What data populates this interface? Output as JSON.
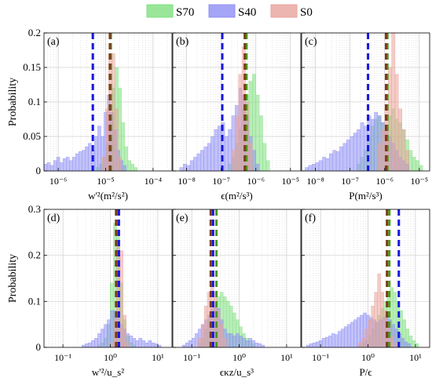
{
  "legend": {
    "position": "top-center",
    "entries": [
      {
        "name": "S70",
        "color": "#7fe07f"
      },
      {
        "name": "S40",
        "color": "#8f8ff5"
      },
      {
        "name": "S0",
        "color": "#e9a39b"
      }
    ]
  },
  "colors": {
    "S70": "#7fe07f",
    "S40": "#8f8ff5",
    "S0": "#e9a39b",
    "S70_line": "#4c9a18",
    "S40_line": "#1515e0",
    "S0_line": "#7a3d1c"
  },
  "chart_data": [
    {
      "type": "bar",
      "panel": "(a)",
      "xscale": "log",
      "xlim_exp": [
        -6.3,
        -3.6
      ],
      "xticks": [
        -6,
        -5,
        -4
      ],
      "ylim": [
        0,
        0.2
      ],
      "yticks": [
        0,
        0.05,
        0.1,
        0.15,
        0.2
      ],
      "yticklabels": [
        "0",
        "0.05",
        "0.1",
        "0.15",
        "0.2"
      ],
      "ylabel": "Probability",
      "xlabel": "w'²(m²/s²)",
      "bin_width": 0.0667,
      "means": {
        "S70": -4.89,
        "S40": -5.27,
        "S0": -4.91
      },
      "series": [
        {
          "name": "S70",
          "start": -5.2,
          "values": [
            0.005,
            0.01,
            0.02,
            0.04,
            0.07,
            0.12,
            0.15,
            0.12,
            0.07,
            0.035,
            0.015,
            0.01,
            0.005
          ]
        },
        {
          "name": "S40",
          "start": -6.3,
          "values": [
            0.01,
            0.012,
            0.008,
            0.015,
            0.02,
            0.012,
            0.018,
            0.02,
            0.015,
            0.02,
            0.025,
            0.028,
            0.03,
            0.035,
            0.04,
            0.03,
            0.05,
            0.065,
            0.05,
            0.085,
            0.11,
            0.085,
            0.06,
            0.03,
            0.015,
            0.008
          ]
        },
        {
          "name": "S0",
          "start": -5.07,
          "values": [
            0.02,
            0.09,
            0.17,
            0.17,
            0.09,
            0.02
          ]
        }
      ]
    },
    {
      "type": "bar",
      "panel": "(b)",
      "xscale": "log",
      "xlim_exp": [
        -8.4,
        -4.7
      ],
      "xticks": [
        -8,
        -7,
        -6,
        -5
      ],
      "ylim": [
        0,
        0.2
      ],
      "yticks": [
        0,
        0.05,
        0.1,
        0.15,
        0.2
      ],
      "yticklabels": [],
      "ylabel": "",
      "xlabel": "ϵ(m²/s³)",
      "bin_width": 0.1,
      "means": {
        "S70": -6.27,
        "S40": -6.97,
        "S0": -6.32
      },
      "series": [
        {
          "name": "S70",
          "start": -6.8,
          "values": [
            0.01,
            0.02,
            0.04,
            0.06,
            0.09,
            0.11,
            0.13,
            0.14,
            0.11,
            0.08,
            0.04,
            0.015
          ]
        },
        {
          "name": "S40",
          "start": -8.2,
          "values": [
            0.005,
            0.01,
            0.008,
            0.015,
            0.02,
            0.025,
            0.03,
            0.035,
            0.04,
            0.05,
            0.06,
            0.065,
            0.07,
            0.05,
            0.06,
            0.08,
            0.095,
            0.12,
            0.11,
            0.08,
            0.05,
            0.03,
            0.01
          ]
        },
        {
          "name": "S0",
          "start": -6.7,
          "values": [
            0.03,
            0.08,
            0.14,
            0.18,
            0.1,
            0.04
          ]
        }
      ]
    },
    {
      "type": "bar",
      "panel": "(c)",
      "xscale": "log",
      "xlim_exp": [
        -8.4,
        -4.7
      ],
      "xticks": [
        -8,
        -7,
        -6,
        -5
      ],
      "ylim": [
        0,
        0.2
      ],
      "yticks": [
        0,
        0.05,
        0.1,
        0.15,
        0.2
      ],
      "yticklabels": [],
      "ylabel": "",
      "xlabel": "P(m²/s³)",
      "bin_width": 0.1,
      "means": {
        "S70": -5.92,
        "S40": -6.48,
        "S0": -5.96
      },
      "series": [
        {
          "name": "S70",
          "start": -6.8,
          "values": [
            0.01,
            0.02,
            0.03,
            0.05,
            0.065,
            0.075,
            0.08,
            0.07,
            0.065,
            0.08,
            0.09,
            0.075,
            0.07,
            0.06,
            0.045,
            0.03,
            0.02,
            0.015,
            0.008
          ]
        },
        {
          "name": "S40",
          "start": -8.3,
          "values": [
            0.005,
            0.008,
            0.01,
            0.012,
            0.015,
            0.02,
            0.018,
            0.025,
            0.03,
            0.028,
            0.035,
            0.04,
            0.045,
            0.05,
            0.055,
            0.06,
            0.07,
            0.065,
            0.08,
            0.075,
            0.085,
            0.08,
            0.07,
            0.06,
            0.05,
            0.04,
            0.03,
            0.02,
            0.015,
            0.01
          ]
        },
        {
          "name": "S0",
          "start": -6.2,
          "values": [
            0.04,
            0.06,
            0.09,
            0.15,
            0.2,
            0.14,
            0.09,
            0.06,
            0.03
          ]
        }
      ]
    },
    {
      "type": "bar",
      "panel": "(d)",
      "xscale": "log",
      "xlim_exp": [
        -1.4,
        1.3
      ],
      "xticks": [
        -1,
        0,
        1
      ],
      "ylim": [
        0,
        0.3
      ],
      "yticks": [
        0,
        0.1,
        0.2,
        0.3
      ],
      "yticklabels": [
        "0",
        "0.1",
        "0.2",
        "0.3"
      ],
      "ylabel": "Probability",
      "xlabel": "w'²/u_s²",
      "bin_width": 0.0667,
      "means": {
        "S70": 0.14,
        "S40": 0.18,
        "S0": 0.12
      },
      "series": [
        {
          "name": "S70",
          "start": -0.27,
          "values": [
            0.005,
            0.01,
            0.02,
            0.05,
            0.14,
            0.27,
            0.25,
            0.14,
            0.06,
            0.025,
            0.01,
            0.005
          ]
        },
        {
          "name": "S40",
          "start": -0.6,
          "values": [
            0.005,
            0.008,
            0.01,
            0.015,
            0.02,
            0.03,
            0.04,
            0.05,
            0.06,
            0.08,
            0.08,
            0.07,
            0.05,
            0.04,
            0.03,
            0.025,
            0.02,
            0.015,
            0.02,
            0.015,
            0.01,
            0.015,
            0.01,
            0.008,
            0.005
          ]
        },
        {
          "name": "S0",
          "start": 0.0,
          "values": [
            0.01,
            0.06,
            0.22,
            0.21,
            0.07,
            0.01
          ]
        }
      ]
    },
    {
      "type": "bar",
      "panel": "(e)",
      "xscale": "log",
      "xlim_exp": [
        -1.4,
        1.3
      ],
      "xticks": [
        -1,
        0,
        1
      ],
      "ylim": [
        0,
        0.3
      ],
      "yticks": [
        0,
        0.1,
        0.2,
        0.3
      ],
      "yticklabels": [],
      "ylabel": "",
      "xlabel": "ϵκz/u_s³",
      "bin_width": 0.0667,
      "means": {
        "S70": -0.48,
        "S40": -0.55,
        "S0": -0.6
      },
      "series": [
        {
          "name": "S70",
          "start": -0.87,
          "values": [
            0.01,
            0.02,
            0.04,
            0.06,
            0.08,
            0.1,
            0.11,
            0.12,
            0.11,
            0.1,
            0.09,
            0.075,
            0.06,
            0.045,
            0.03,
            0.02,
            0.015,
            0.008
          ]
        },
        {
          "name": "S40",
          "start": -1.2,
          "values": [
            0.005,
            0.01,
            0.015,
            0.02,
            0.03,
            0.04,
            0.05,
            0.06,
            0.07,
            0.085,
            0.09,
            0.085,
            0.06,
            0.04,
            0.03,
            0.03,
            0.025,
            0.03,
            0.025,
            0.02,
            0.015,
            0.02,
            0.015,
            0.01,
            0.008,
            0.005
          ]
        },
        {
          "name": "S0",
          "start": -0.87,
          "values": [
            0.02,
            0.05,
            0.09,
            0.12,
            0.14,
            0.12,
            0.08,
            0.05,
            0.02
          ]
        }
      ]
    },
    {
      "type": "bar",
      "panel": "(f)",
      "xscale": "log",
      "xlim_exp": [
        -1.4,
        1.3
      ],
      "xticks": [
        -1,
        0,
        1
      ],
      "ylim": [
        0,
        0.3
      ],
      "yticks": [
        0,
        0.1,
        0.2,
        0.3
      ],
      "yticklabels": [],
      "ylabel": "",
      "xlabel": "P/ϵ",
      "bin_width": 0.0667,
      "means": {
        "S70": 0.45,
        "S40": 0.65,
        "S0": 0.4
      },
      "series": [
        {
          "name": "S70",
          "start": -0.2,
          "values": [
            0.005,
            0.01,
            0.015,
            0.025,
            0.04,
            0.055,
            0.07,
            0.085,
            0.1,
            0.12,
            0.13,
            0.12,
            0.1,
            0.08,
            0.06,
            0.04,
            0.025,
            0.015,
            0.008
          ]
        },
        {
          "name": "S40",
          "start": -1.3,
          "values": [
            0.005,
            0.008,
            0.01,
            0.012,
            0.015,
            0.02,
            0.022,
            0.025,
            0.03,
            0.028,
            0.035,
            0.04,
            0.045,
            0.05,
            0.055,
            0.06,
            0.065,
            0.07,
            0.075,
            0.07,
            0.065,
            0.06,
            0.055,
            0.06,
            0.065,
            0.07,
            0.06,
            0.05,
            0.04,
            0.03,
            0.02,
            0.012,
            0.008
          ]
        },
        {
          "name": "S0",
          "start": -0.2,
          "values": [
            0.01,
            0.02,
            0.04,
            0.06,
            0.09,
            0.12,
            0.16,
            0.12,
            0.08,
            0.05,
            0.025,
            0.01
          ]
        }
      ]
    }
  ]
}
